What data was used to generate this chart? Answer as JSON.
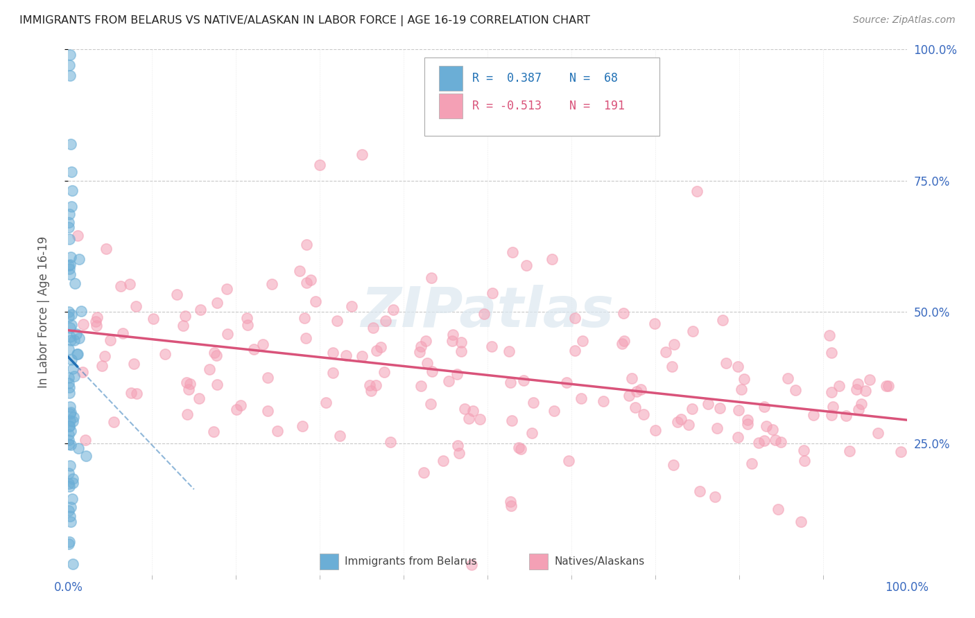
{
  "title": "IMMIGRANTS FROM BELARUS VS NATIVE/ALASKAN IN LABOR FORCE | AGE 16-19 CORRELATION CHART",
  "source": "Source: ZipAtlas.com",
  "ylabel": "In Labor Force | Age 16-19",
  "xlim": [
    0.0,
    1.0
  ],
  "ylim": [
    0.0,
    1.0
  ],
  "grid_color": "#c8c8c8",
  "blue_color": "#6baed6",
  "pink_color": "#f4a0b5",
  "blue_line_color": "#2171b5",
  "pink_line_color": "#d9537a",
  "legend_R_blue": "0.387",
  "legend_N_blue": "68",
  "legend_R_pink": "-0.513",
  "legend_N_pink": "191",
  "watermark": "ZIPatlas",
  "blue_R": 0.387,
  "pink_R": -0.513,
  "blue_N": 68,
  "pink_N": 191,
  "blue_seed": 12,
  "pink_seed": 7
}
